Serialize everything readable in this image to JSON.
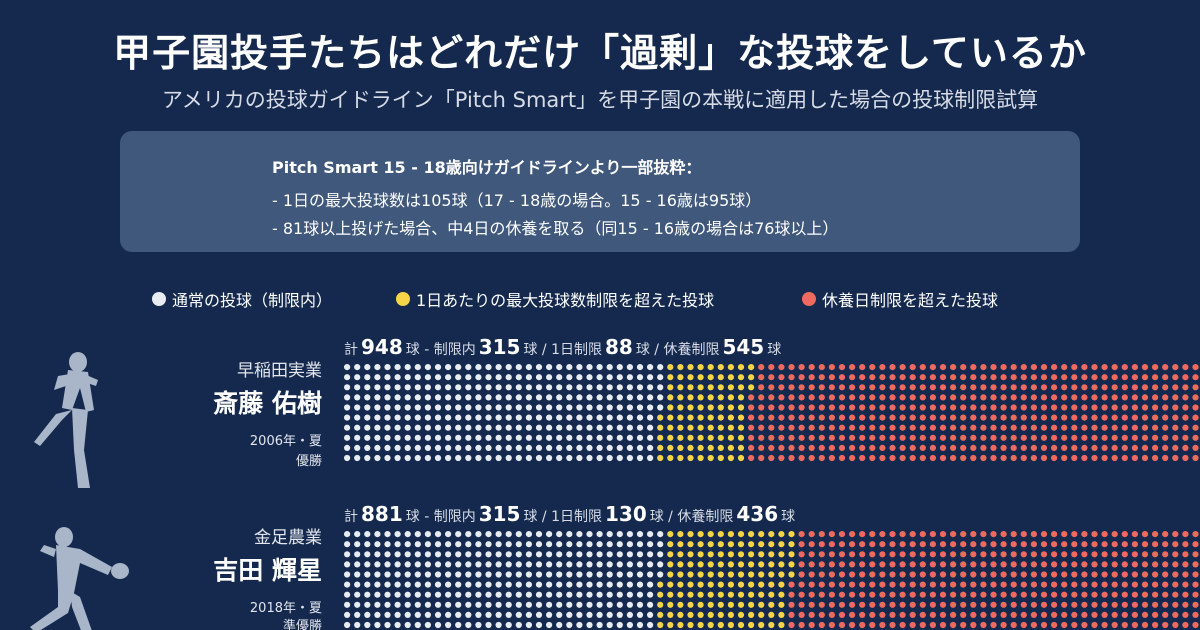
{
  "header": {
    "title": "甲子園投手たちはどれだけ「過剰」な投球をしているか",
    "subtitle": "アメリカの投球ガイドライン「Pitch Smart」を甲子園の本戦に適用した場合の投球制限試算"
  },
  "note": {
    "heading": "Pitch Smart 15 - 18歳向けガイドラインより一部抜粋：",
    "line1": "- 1日の最大投球数は105球（17 - 18歳の場合。15 - 16歳は95球）",
    "line2": "- 81球以上投げた場合、中4日の休養を取る（同15 - 16歳の場合は76球以上）"
  },
  "legend": {
    "normal": "通常の投球（制限内）",
    "daily": "1日あたりの最大投球数制限を超えた投球",
    "rest": "休養日制限を超えた投球"
  },
  "colors": {
    "background": "#14294d",
    "normal": "#e8ecf3",
    "daily": "#f5d547",
    "rest": "#ee6a5f",
    "silhouette": "#a9b6c9"
  },
  "stats_labels": {
    "total": "計",
    "unit_total": "球 - 制限内",
    "unit_within": "球 / 1日制限",
    "unit_daily": "球 / 休養制限",
    "unit_rest": "球"
  },
  "players": [
    {
      "school": "早稲田実業",
      "name": "斎藤 佑樹",
      "year": "2006年・夏",
      "result": "優勝",
      "total": "948",
      "within": "315",
      "daily": "88",
      "rest": "545"
    },
    {
      "school": "金足農業",
      "name": "吉田 輝星",
      "year": "2018年・夏",
      "result": "準優勝",
      "total": "881",
      "within": "315",
      "daily": "130",
      "rest": "436"
    }
  ],
  "chart_data": {
    "type": "bar",
    "categories": [
      "斎藤 佑樹",
      "吉田 輝星"
    ],
    "series": [
      {
        "name": "通常の投球（制限内）",
        "values": [
          315,
          315
        ]
      },
      {
        "name": "1日あたりの最大投球数制限を超えた投球",
        "values": [
          88,
          130
        ]
      },
      {
        "name": "休養日制限を超えた投球",
        "values": [
          545,
          436
        ]
      }
    ],
    "totals": [
      948,
      881
    ]
  }
}
